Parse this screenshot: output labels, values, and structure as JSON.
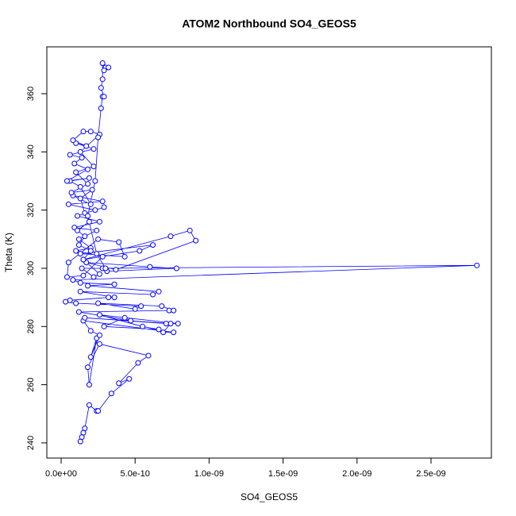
{
  "chart_data": {
    "type": "scatter",
    "title": "ATOM2 Northbound SO4_GEOS5",
    "x_label": "SO4_GEOS5",
    "y_label": "Theta (K)",
    "xlim": [
      -9.66e-11,
      2.908e-09
    ],
    "ylim": [
      234.8,
      376.1
    ],
    "xticks": [
      {
        "value": 0,
        "label": "0.0e+00"
      },
      {
        "value": 5e-10,
        "label": "5.0e-10"
      },
      {
        "value": 1e-09,
        "label": "1.0e-09"
      },
      {
        "value": 1.5e-09,
        "label": "1.5e-09"
      },
      {
        "value": 2e-09,
        "label": "2.0e-09"
      },
      {
        "value": 2.5e-09,
        "label": "2.5e-09"
      }
    ],
    "yticks": [
      240,
      260,
      280,
      300,
      320,
      340,
      360
    ],
    "series": [
      {
        "color": "#0000ff",
        "x": [
          1.3e-10,
          1.4e-10,
          1.5e-10,
          1.6e-10,
          1.9e-10,
          2.4e-10,
          2.5e-10,
          3.4e-10,
          4.6e-10,
          3.9e-10,
          5.2e-10,
          5.9e-10,
          2.6e-10,
          1.8e-10,
          1.9e-10,
          2.4e-10,
          2e-10,
          2.6e-10,
          2e-10,
          1.5e-10,
          7.6e-10,
          6.9e-10,
          7.4e-10,
          1.6e-10,
          7.1e-10,
          7.9e-10,
          2.6e-10,
          5.5e-10,
          6.6e-10,
          2.9e-10,
          4.3e-10,
          4.7e-10,
          1.2e-10,
          7.3e-10,
          7.6e-10,
          6.8e-10,
          2.5e-10,
          5e-10,
          5.4e-10,
          1e-10,
          3e-11,
          6e-11,
          3.2e-10,
          3.6e-10,
          1.3e-10,
          6.2e-10,
          6.6e-10,
          1.8e-10,
          3.6e-10,
          1.3e-10,
          8e-11,
          2.81e-09,
          2.8e-10,
          3.1e-10,
          7.8e-10,
          6e-10,
          1.7e-10,
          3.7e-10,
          9.1e-10,
          8.7e-10,
          7.4e-10,
          1.5e-10,
          5.3e-10,
          6.2e-10,
          1.3e-10,
          4.3e-10,
          3.9e-10,
          2.5e-10,
          5e-11,
          4e-11,
          1.5e-10,
          2.8e-10,
          1e-10,
          2e-10,
          1.2e-10,
          2.4e-10,
          9e-11,
          2.6e-10,
          1.1e-10,
          2.9e-10,
          2.3e-10,
          5e-11,
          2.8e-10,
          8e-11,
          2e-10,
          1.3e-10,
          6e-11,
          1.9e-10,
          4e-11,
          1.8e-10,
          9e-11,
          1.4e-10,
          6e-11,
          2.2e-10,
          1e-10,
          1.7e-10,
          8e-11,
          1.5e-10,
          2e-10,
          2.6e-10,
          1.3e-10,
          2.2e-10,
          1e-10,
          1.8e-10,
          7e-11,
          2.1e-10,
          1.3e-10,
          1.6e-10,
          1.9e-10,
          1.1e-10,
          1.6e-10,
          1.2e-10,
          2e-10,
          1.5e-10,
          2.6e-10,
          2.2e-10,
          1.4e-10,
          3e-10,
          2.4e-10,
          1.8e-10,
          2.3e-10,
          2.5e-10,
          2.7e-10,
          2.8e-10,
          2.9e-10,
          2.7e-10,
          2.8e-10,
          2.8e-10,
          3e-10,
          3.2e-10,
          2.9e-10
        ],
        "values": [
          240.5,
          242,
          243.5,
          245,
          253,
          251,
          251,
          257,
          262,
          260.5,
          267.5,
          270,
          274,
          266,
          260,
          276,
          269.5,
          277,
          278.5,
          282,
          278,
          278,
          281,
          283,
          281,
          281,
          284,
          280,
          279,
          280,
          283,
          282,
          285,
          285.5,
          285.5,
          287,
          288,
          286,
          287,
          288,
          288.5,
          289,
          290,
          290,
          292,
          291,
          292,
          294,
          294.5,
          295,
          296,
          301,
          300,
          299,
          300,
          300.5,
          302,
          299.5,
          309.5,
          313,
          311,
          303,
          306,
          308,
          305,
          304,
          309,
          310,
          302,
          297,
          297.5,
          304,
          306,
          307,
          310,
          313,
          314,
          316,
          318,
          321,
          320,
          322,
          323,
          325,
          322,
          328,
          330,
          331,
          330,
          334,
          336,
          338,
          339,
          341,
          343,
          342,
          344,
          347,
          347,
          346,
          340,
          335,
          333,
          329,
          326,
          327,
          324,
          319,
          316,
          313,
          311,
          308,
          306,
          303,
          298,
          297,
          300,
          300,
          305,
          318,
          330,
          345,
          355,
          359,
          359,
          362,
          365,
          370.5,
          369,
          369,
          368
        ]
      }
    ]
  }
}
